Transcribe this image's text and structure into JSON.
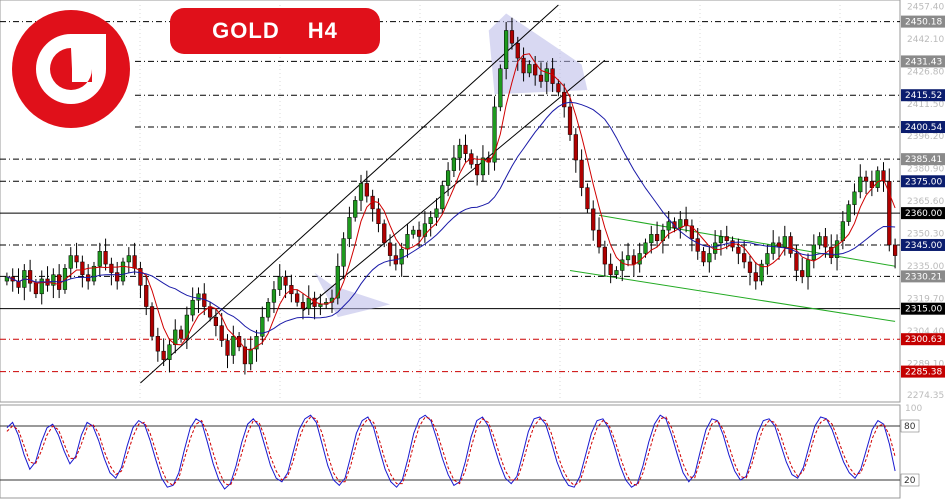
{
  "header": {
    "symbol": "GOLD",
    "timeframe": "H4",
    "brand_color": "#e0101a"
  },
  "logo": {
    "icon": "broker-logo-icon",
    "color": "#e0101a"
  },
  "chart_data": [
    {
      "type": "candlestick",
      "title": "",
      "xlabel": "",
      "ylabel": "",
      "ylim": [
        2272,
        2458
      ],
      "y_tick_labels": [
        "2457.40",
        "2442.10",
        "2426.80",
        "2411.50",
        "2396.20",
        "2380.90",
        "2365.60",
        "2350.30",
        "2335.00",
        "2319.70",
        "2304.40",
        "2289.10",
        "2274.35"
      ],
      "price_levels": [
        {
          "label": "2450.18",
          "value": 2450.18,
          "style": "dash-dot",
          "color": "#000000",
          "box": "gray"
        },
        {
          "label": "2431.43",
          "value": 2431.43,
          "style": "dash-dot",
          "color": "#000000",
          "box": "gray"
        },
        {
          "label": "2415.52",
          "value": 2415.52,
          "style": "dash-dot",
          "color": "#000000",
          "box": "navy"
        },
        {
          "label": "2400.54",
          "value": 2400.54,
          "style": "dash-dot",
          "color": "#000000",
          "box": "navy"
        },
        {
          "label": "2385.41",
          "value": 2385.41,
          "style": "dash-dot",
          "color": "#000000",
          "box": "gray"
        },
        {
          "label": "2375.00",
          "value": 2375.0,
          "style": "dash-dot",
          "color": "#000000",
          "box": "navy"
        },
        {
          "label": "2360.00",
          "value": 2360.0,
          "style": "solid",
          "color": "#000000",
          "box": "black"
        },
        {
          "label": "2345.00",
          "value": 2345.0,
          "style": "dash-dot",
          "color": "#000000",
          "box": "navy"
        },
        {
          "label": "2330.21",
          "value": 2330.21,
          "style": "dash-dot",
          "color": "#000000",
          "box": "gray"
        },
        {
          "label": "2315.00",
          "value": 2315.0,
          "style": "solid",
          "color": "#000000",
          "box": "black"
        },
        {
          "label": "2300.63",
          "value": 2300.63,
          "style": "dash-dot",
          "color": "#cc0000",
          "box": "red"
        },
        {
          "label": "2285.38",
          "value": 2285.38,
          "style": "dash-dot",
          "color": "#cc0000",
          "box": "red"
        }
      ],
      "close": [
        2330,
        2328,
        2325,
        2333,
        2327,
        2322,
        2329,
        2326,
        2331,
        2324,
        2334,
        2340,
        2337,
        2331,
        2328,
        2335,
        2342,
        2336,
        2332,
        2328,
        2337,
        2340,
        2334,
        2326,
        2316,
        2302,
        2295,
        2291,
        2298,
        2305,
        2301,
        2312,
        2319,
        2322,
        2316,
        2311,
        2307,
        2300,
        2293,
        2302,
        2297,
        2289,
        2296,
        2302,
        2311,
        2318,
        2324,
        2330,
        2326,
        2322,
        2318,
        2315,
        2320,
        2316,
        2317,
        2318,
        2320,
        2335,
        2348,
        2358,
        2366,
        2374,
        2368,
        2362,
        2355,
        2346,
        2340,
        2336,
        2343,
        2350,
        2352,
        2349,
        2355,
        2358,
        2362,
        2373,
        2380,
        2386,
        2392,
        2388,
        2383,
        2378,
        2386,
        2384,
        2410,
        2428,
        2446,
        2440,
        2433,
        2426,
        2430,
        2425,
        2422,
        2428,
        2421,
        2417,
        2410,
        2397,
        2385,
        2372,
        2362,
        2352,
        2344,
        2336,
        2331,
        2333,
        2338,
        2340,
        2336,
        2341,
        2346,
        2350,
        2347,
        2352,
        2356,
        2353,
        2357,
        2354,
        2348,
        2342,
        2337,
        2341,
        2346,
        2349,
        2347,
        2344,
        2341,
        2337,
        2332,
        2328,
        2336,
        2341,
        2346,
        2344,
        2349,
        2341,
        2333,
        2330,
        2338,
        2345,
        2349,
        2344,
        2339,
        2347,
        2356,
        2364,
        2370,
        2377,
        2375,
        2372,
        2380,
        2375,
        2345,
        2340
      ],
      "moving_averages": [
        {
          "name": "",
          "color": "#d00000",
          "period": 5
        },
        {
          "name": "",
          "color": "#1a1aa8",
          "period": 20
        }
      ],
      "trendlines": [
        {
          "color": "#000000",
          "points": [
            [
              23,
              2280
            ],
            [
              95,
              2458
            ]
          ]
        },
        {
          "color": "#000000",
          "points": [
            [
              51,
              2314
            ],
            [
              103,
              2432
            ]
          ]
        },
        {
          "color": "#22aa22",
          "points": [
            [
              102,
              2359
            ],
            [
              153,
              2335
            ]
          ]
        },
        {
          "color": "#22aa22",
          "points": [
            [
              97,
              2333
            ],
            [
              153,
              2309
            ]
          ]
        }
      ],
      "annotations": [
        "shaded-triangle-left",
        "shaded-triangle-top"
      ]
    },
    {
      "type": "line",
      "title": "",
      "ylim": [
        0,
        100
      ],
      "levels": [
        {
          "label": "80",
          "value": 80
        },
        {
          "label": "20",
          "value": 20
        }
      ],
      "tick_labels": [
        "100",
        "80",
        "20"
      ],
      "series": [
        {
          "color": "#1a1ad0",
          "style": "solid",
          "values": [
            78,
            84,
            70,
            48,
            32,
            40,
            62,
            78,
            82,
            70,
            52,
            38,
            46,
            70,
            84,
            80,
            64,
            44,
            28,
            22,
            34,
            58,
            78,
            86,
            82,
            64,
            42,
            22,
            12,
            14,
            28,
            54,
            78,
            88,
            84,
            62,
            38,
            20,
            10,
            16,
            36,
            62,
            82,
            88,
            80,
            58,
            36,
            22,
            18,
            28,
            52,
            76,
            88,
            92,
            84,
            60,
            36,
            20,
            14,
            22,
            46,
            72,
            86,
            90,
            78,
            54,
            32,
            18,
            12,
            20,
            44,
            72,
            88,
            92,
            86,
            66,
            44,
            26,
            14,
            18,
            40,
            68,
            86,
            90,
            80,
            58,
            38,
            22,
            16,
            24,
            48,
            74,
            88,
            90,
            82,
            62,
            40,
            24,
            14,
            12,
            24,
            48,
            72,
            86,
            88,
            78,
            58,
            36,
            20,
            12,
            16,
            36,
            62,
            82,
            92,
            88,
            70,
            48,
            28,
            18,
            26,
            52,
            76,
            88,
            86,
            70,
            48,
            30,
            20,
            24,
            46,
            72,
            86,
            88,
            80,
            60,
            40,
            26,
            22,
            34,
            58,
            80,
            90,
            88,
            76,
            58,
            40,
            28,
            22,
            32,
            54,
            76,
            86,
            82,
            60,
            30
          ]
        },
        {
          "color": "#d00000",
          "style": "dashed",
          "values": [
            74,
            80,
            76,
            58,
            40,
            38,
            52,
            70,
            80,
            76,
            60,
            44,
            44,
            60,
            78,
            82,
            72,
            52,
            36,
            26,
            30,
            48,
            68,
            82,
            84,
            72,
            52,
            32,
            18,
            14,
            22,
            44,
            66,
            82,
            86,
            72,
            50,
            30,
            16,
            14,
            28,
            50,
            72,
            86,
            84,
            68,
            46,
            30,
            20,
            24,
            42,
            66,
            82,
            90,
            88,
            72,
            48,
            28,
            18,
            18,
            36,
            60,
            80,
            88,
            84,
            64,
            42,
            26,
            16,
            16,
            34,
            60,
            80,
            90,
            88,
            74,
            54,
            34,
            20,
            16,
            30,
            56,
            78,
            88,
            84,
            68,
            48,
            30,
            20,
            20,
            38,
            62,
            80,
            88,
            86,
            72,
            50,
            32,
            20,
            14,
            18,
            38,
            60,
            78,
            86,
            82,
            66,
            46,
            28,
            16,
            14,
            28,
            50,
            72,
            88,
            90,
            78,
            58,
            38,
            24,
            22,
            42,
            64,
            82,
            86,
            76,
            58,
            38,
            24,
            22,
            38,
            60,
            78,
            86,
            84,
            70,
            50,
            34,
            24,
            30,
            48,
            70,
            84,
            88,
            82,
            66,
            48,
            34,
            26,
            28,
            44,
            66,
            80,
            82,
            70,
            46
          ]
        }
      ]
    }
  ]
}
